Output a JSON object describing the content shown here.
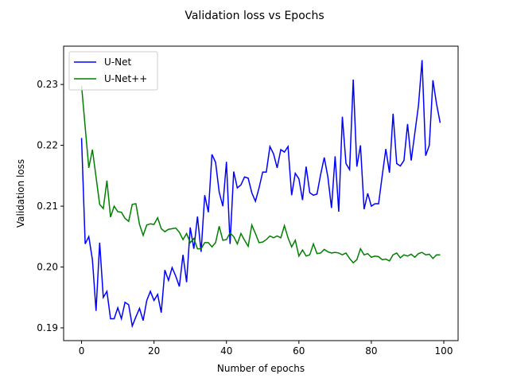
{
  "chart_data": {
    "type": "line",
    "title": "Validation loss vs Epochs",
    "xlabel": "Number of epochs",
    "ylabel": "Validation loss",
    "x": [
      0,
      1,
      2,
      3,
      4,
      5,
      6,
      7,
      8,
      9,
      10,
      11,
      12,
      13,
      14,
      15,
      16,
      17,
      18,
      19,
      20,
      21,
      22,
      23,
      24,
      25,
      26,
      27,
      28,
      29,
      30,
      31,
      32,
      33,
      34,
      35,
      36,
      37,
      38,
      39,
      40,
      41,
      42,
      43,
      44,
      45,
      46,
      47,
      48,
      49,
      50,
      51,
      52,
      53,
      54,
      55,
      56,
      57,
      58,
      59,
      60,
      61,
      62,
      63,
      64,
      65,
      66,
      67,
      68,
      69,
      70,
      71,
      72,
      73,
      74,
      75,
      76,
      77,
      78,
      79,
      80,
      81,
      82,
      83,
      84,
      85,
      86,
      87,
      88,
      89,
      90,
      91,
      92,
      93,
      94,
      95,
      96,
      97,
      98,
      99
    ],
    "series": [
      {
        "name": "U-Net",
        "color": "#0000ff",
        "values": [
          0.2212,
          0.2038,
          0.205,
          0.2012,
          0.1928,
          0.204,
          0.195,
          0.196,
          0.1915,
          0.1915,
          0.1933,
          0.1915,
          0.1942,
          0.1938,
          0.1903,
          0.1918,
          0.1932,
          0.1912,
          0.1945,
          0.196,
          0.1945,
          0.1955,
          0.1925,
          0.1995,
          0.1978,
          0.1999,
          0.1985,
          0.1968,
          0.202,
          0.1975,
          0.2065,
          0.203,
          0.2083,
          0.2025,
          0.2118,
          0.209,
          0.2185,
          0.2172,
          0.2123,
          0.21,
          0.2173,
          0.2038,
          0.2157,
          0.213,
          0.2135,
          0.2148,
          0.2146,
          0.2122,
          0.2108,
          0.213,
          0.2156,
          0.2156,
          0.2198,
          0.2186,
          0.2163,
          0.2193,
          0.2189,
          0.2198,
          0.2118,
          0.2154,
          0.2145,
          0.211,
          0.2165,
          0.2122,
          0.2118,
          0.212,
          0.2152,
          0.218,
          0.2148,
          0.2097,
          0.2182,
          0.2091,
          0.2247,
          0.217,
          0.216,
          0.2308,
          0.2165,
          0.22,
          0.2095,
          0.2121,
          0.21,
          0.2104,
          0.2104,
          0.215,
          0.2194,
          0.2155,
          0.2252,
          0.217,
          0.2166,
          0.2175,
          0.2235,
          0.2175,
          0.222,
          0.2265,
          0.234,
          0.2183,
          0.22,
          0.2307,
          0.2268,
          0.2237
        ]
      },
      {
        "name": "U-Net++",
        "color": "#008000",
        "values": [
          0.2298,
          0.223,
          0.2163,
          0.2193,
          0.2148,
          0.2103,
          0.2096,
          0.2142,
          0.2082,
          0.21,
          0.2091,
          0.209,
          0.208,
          0.2075,
          0.2103,
          0.2104,
          0.207,
          0.2052,
          0.2069,
          0.2071,
          0.207,
          0.2081,
          0.2063,
          0.2058,
          0.2062,
          0.2063,
          0.2064,
          0.2057,
          0.2045,
          0.2055,
          0.204,
          0.2047,
          0.203,
          0.203,
          0.204,
          0.204,
          0.2033,
          0.204,
          0.2067,
          0.2044,
          0.2045,
          0.2056,
          0.205,
          0.2038,
          0.2055,
          0.2044,
          0.2034,
          0.2069,
          0.2055,
          0.204,
          0.2041,
          0.2045,
          0.2051,
          0.2048,
          0.2051,
          0.2048,
          0.2068,
          0.2048,
          0.2033,
          0.2044,
          0.2018,
          0.2028,
          0.2018,
          0.202,
          0.2038,
          0.2022,
          0.2023,
          0.2029,
          0.2025,
          0.2023,
          0.2024,
          0.2023,
          0.202,
          0.2023,
          0.2014,
          0.2007,
          0.2012,
          0.203,
          0.202,
          0.2022,
          0.2016,
          0.2018,
          0.2017,
          0.2012,
          0.2013,
          0.201,
          0.202,
          0.2023,
          0.2015,
          0.202,
          0.2018,
          0.2021,
          0.2016,
          0.2022,
          0.2024,
          0.202,
          0.2021,
          0.2014,
          0.202,
          0.202
        ]
      }
    ],
    "xlim": [
      -4.95,
      103.95
    ],
    "xticks": [
      0,
      20,
      40,
      60,
      80,
      100
    ],
    "ylim": [
      0.1879,
      0.2363
    ],
    "yticks": [
      0.19,
      {
        "value": 0.2,
        "label": "0.20"
      },
      0.21,
      0.22,
      0.23
    ],
    "legend": "upper left"
  }
}
